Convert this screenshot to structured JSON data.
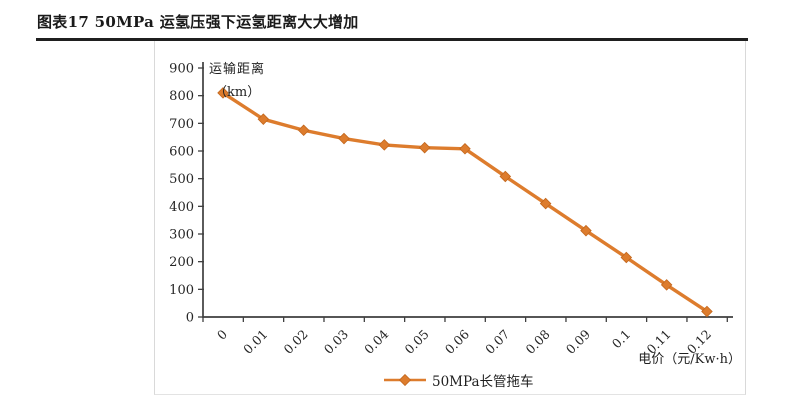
{
  "page": {
    "title": "图表17 50MPa 运氢压强下运氢距离大大增加"
  },
  "chart_data": {
    "type": "line",
    "title": "图表17 50MPa 运氢压强下运氢距离大大增加",
    "x_tick_labels": [
      "0",
      "0.01",
      "0.02",
      "0.03",
      "0.04",
      "0.05",
      "0.06",
      "0.07",
      "0.08",
      "0.09",
      "0.1",
      "0.11",
      "0.12"
    ],
    "series": [
      {
        "name": "50MPa长管拖车",
        "values": [
          810,
          715,
          675,
          645,
          622,
          612,
          608,
          508,
          410,
          312,
          215,
          116,
          20
        ],
        "color": "#dd7c2d",
        "marker": "diamond"
      }
    ],
    "xlabel": "电价（元/Kw·h）",
    "ylabel": "运输距离（km）",
    "ylabel_lines": [
      "运输距离",
      "（km）"
    ],
    "y_ticks": [
      900,
      800,
      700,
      600,
      500,
      400,
      300,
      200,
      100,
      0
    ],
    "ylim": [
      0,
      900
    ],
    "grid": false,
    "legend_position": "bottom-center"
  },
  "colors": {
    "accent_orange": "#dd7c2d",
    "marker_edge": "#c2661c",
    "axis": "#3f3f3f",
    "text": "#262626",
    "title_rule": "#1f1f1f",
    "panel_border": "#d9d9d9"
  }
}
